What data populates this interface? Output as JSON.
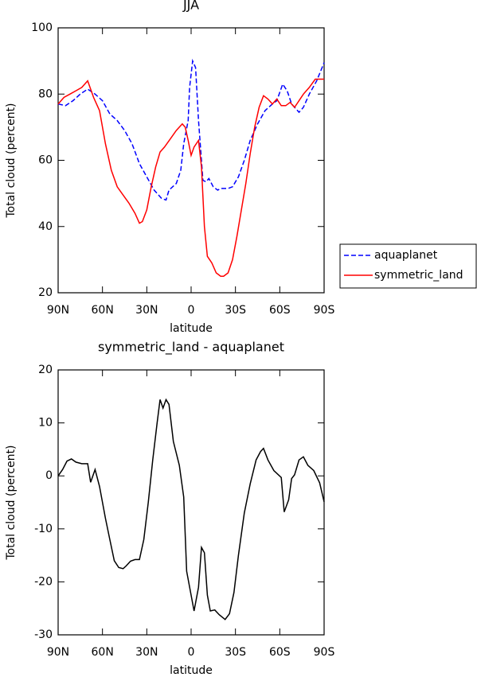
{
  "chart_data": [
    {
      "type": "line",
      "title": "JJA",
      "xlabel": "latitude",
      "ylabel": "Total cloud (percent)",
      "xlim": [
        90,
        -90
      ],
      "ylim": [
        20,
        100
      ],
      "xticks": [
        {
          "value": 90,
          "label": "90N"
        },
        {
          "value": 60,
          "label": "60N"
        },
        {
          "value": 30,
          "label": "30N"
        },
        0,
        {
          "value": -30,
          "label": "30S"
        },
        {
          "value": -60,
          "label": "60S"
        },
        {
          "value": -90,
          "label": "90S"
        }
      ],
      "yticks": [
        20,
        40,
        60,
        80,
        100
      ],
      "legend": "right",
      "series": [
        {
          "name": "aquaplanet",
          "color": "#0000ff",
          "dash": true,
          "x": [
            90,
            85,
            80,
            75,
            70,
            65,
            60,
            55,
            50,
            45,
            40,
            35,
            30,
            25,
            20,
            17,
            15,
            10,
            7,
            5,
            2,
            1,
            -1,
            -3,
            -5,
            -8,
            -10,
            -12,
            -15,
            -18,
            -20,
            -25,
            -28,
            -32,
            -36,
            -40,
            -45,
            -50,
            -55,
            -58,
            -62,
            -65,
            -68,
            -70,
            -73,
            -76,
            -80,
            -85,
            -90
          ],
          "values": [
            77,
            76.5,
            78,
            80,
            81.5,
            80,
            78,
            74,
            72,
            69,
            65,
            59,
            55,
            51,
            48.5,
            48,
            51,
            53,
            57,
            65,
            72,
            82,
            90,
            88,
            72,
            54,
            53.5,
            54.5,
            52,
            51,
            51.5,
            51.5,
            52,
            55,
            60,
            66,
            71,
            75,
            77,
            78,
            83,
            81,
            77,
            76,
            74.5,
            76,
            80,
            84,
            89.5
          ]
        },
        {
          "name": "symmetric_land",
          "color": "#ff0000",
          "dash": false,
          "x": [
            90,
            86,
            82,
            78,
            74,
            70,
            66,
            62,
            58,
            54,
            50,
            46,
            42,
            38,
            35,
            33,
            30,
            27,
            24,
            21,
            18,
            14,
            10,
            6,
            4,
            2,
            0,
            -2,
            -5,
            -7,
            -9,
            -11,
            -14,
            -17,
            -20,
            -22,
            -25,
            -28,
            -31,
            -34,
            -37,
            -40,
            -43,
            -46,
            -49,
            -52,
            -55,
            -58,
            -61,
            -64,
            -67,
            -70,
            -73,
            -76,
            -80,
            -84,
            -90
          ],
          "values": [
            77,
            79,
            80,
            81,
            82,
            84,
            79,
            75,
            65,
            57,
            52,
            49.5,
            47,
            44,
            41,
            41.5,
            45,
            52,
            58,
            62.5,
            64,
            66.5,
            69,
            71,
            70,
            66,
            61.5,
            64,
            66,
            58,
            40,
            31,
            29,
            26,
            25,
            25,
            26,
            30,
            37,
            45,
            53,
            62,
            70,
            76,
            79.5,
            78.5,
            77,
            78.5,
            76.5,
            76.5,
            77.5,
            76,
            78,
            80,
            82,
            84.5,
            84.5
          ]
        }
      ]
    },
    {
      "type": "line",
      "title": "symmetric_land - aquaplanet",
      "xlabel": "latitude",
      "ylabel": "Total cloud (percent)",
      "xlim": [
        90,
        -90
      ],
      "ylim": [
        -30,
        20
      ],
      "xticks": [
        {
          "value": 90,
          "label": "90N"
        },
        {
          "value": 60,
          "label": "60N"
        },
        {
          "value": 30,
          "label": "30N"
        },
        0,
        {
          "value": -30,
          "label": "30S"
        },
        {
          "value": -60,
          "label": "60S"
        },
        {
          "value": -90,
          "label": "90S"
        }
      ],
      "yticks": [
        -30,
        -20,
        -10,
        0,
        10,
        20
      ],
      "series": [
        {
          "color": "#000000",
          "dash": false,
          "x": [
            90,
            87,
            84,
            81,
            78,
            74,
            70,
            68,
            65,
            62,
            58,
            55,
            52,
            49,
            46,
            44,
            41,
            38,
            35,
            32,
            29,
            26,
            23,
            21,
            19,
            17,
            15,
            12,
            8,
            5,
            3,
            -2,
            -5,
            -7,
            -9,
            -11,
            -13,
            -16,
            -19,
            -23,
            -26,
            -29,
            -32,
            -36,
            -40,
            -44,
            -47,
            -49,
            -52,
            -56,
            -61,
            -63,
            -66,
            -68,
            -70,
            -73,
            -76,
            -79,
            -83,
            -87,
            -90
          ],
          "values": [
            0,
            1.2,
            2.8,
            3.2,
            2.6,
            2.3,
            2.3,
            -1.2,
            1.2,
            -2,
            -8,
            -12,
            -16,
            -17.3,
            -17.5,
            -17,
            -16.1,
            -15.8,
            -15.8,
            -12,
            -5,
            3,
            10,
            14.4,
            12.8,
            14.4,
            13.5,
            6.5,
            2,
            -4,
            -18,
            -25.5,
            -21,
            -13.5,
            -14.5,
            -22.5,
            -25.5,
            -25.3,
            -26.2,
            -27.1,
            -26,
            -22,
            -15,
            -7,
            -1.5,
            3,
            4.6,
            5.2,
            3,
            1,
            -0.3,
            -6.8,
            -4.5,
            -0.5,
            0.2,
            3,
            3.6,
            2,
            1,
            -1.3,
            -4.9
          ]
        }
      ]
    }
  ]
}
